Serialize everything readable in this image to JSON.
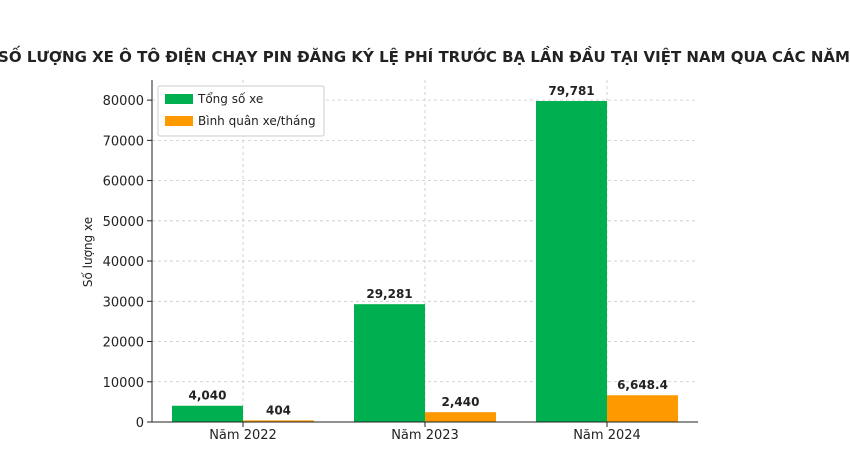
{
  "chart_data": {
    "type": "bar",
    "title": "SỐ LƯỢNG XE Ô TÔ ĐIỆN CHẠY PIN ĐĂNG KÝ LỆ PHÍ TRƯỚC BẠ LẦN ĐẦU TẠI VIỆT NAM QUA CÁC NĂM",
    "xlabel": "",
    "ylabel": "Số lượng xe",
    "categories": [
      "Năm 2022",
      "Năm 2023",
      "Năm 2024"
    ],
    "series": [
      {
        "name": "Tổng số xe",
        "color": "#00b050",
        "values": [
          4040,
          29281,
          79781
        ],
        "labels": [
          "4,040",
          "29,281",
          "79,781"
        ]
      },
      {
        "name": "Bình quân xe/tháng",
        "color": "#ff9900",
        "values": [
          404,
          2440,
          6648.4
        ],
        "labels": [
          "404",
          "2,440",
          "6,648.4"
        ]
      }
    ],
    "ylim": [
      0,
      85000
    ],
    "yticks": [
      0,
      10000,
      20000,
      30000,
      40000,
      50000,
      60000,
      70000,
      80000
    ],
    "grid": true,
    "legend_position": "top-left"
  }
}
